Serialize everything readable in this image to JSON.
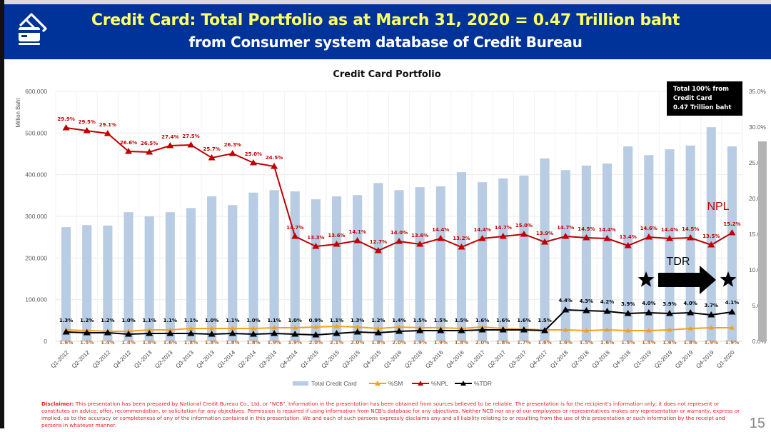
{
  "header": {
    "icon": "credit-card-icon",
    "title_line1": "Credit Card: Total Portfolio as at March 31, 2020 = 0.47 Trillion baht",
    "title_line2": "from Consumer system database of Credit Bureau",
    "bg_color": "#003399",
    "title_color": "#ffff66"
  },
  "callout": {
    "lines": [
      "Total 100% from",
      "Credit Card",
      "0.47 Trillion baht"
    ]
  },
  "annotations": {
    "npl_label": "NPL",
    "tdr_label": "TDR",
    "tdr_markers": [
      "star-icon",
      "arrow-right-icon",
      "star-icon"
    ]
  },
  "chart_data": {
    "type": "bar",
    "title": "Credit Card Portfolio",
    "ylabel": "Million Baht",
    "ylim": [
      0,
      600000
    ],
    "yticks": [
      "0",
      "100,000",
      "200,000",
      "300,000",
      "400,000",
      "500,000",
      "600,000"
    ],
    "y2lim": [
      0,
      35
    ],
    "y2ticks": [
      "0.0%",
      "5.0%",
      "10.0%",
      "15.0%",
      "20.0%",
      "25.0%",
      "30.0%",
      "35.0%"
    ],
    "grid": true,
    "legend_position": "bottom",
    "categories": [
      "Q1-2012",
      "Q2-2012",
      "Q3-2012",
      "Q4-2012",
      "Q1-2013",
      "Q2-2013",
      "Q3-2013",
      "Q4-2013",
      "Q1-2014",
      "Q2-2014",
      "Q3-2014",
      "Q4-2014",
      "Q1-2015",
      "Q2-2015",
      "Q3-2015",
      "Q4-2015",
      "Q1-2016",
      "Q2-2016",
      "Q3-2016",
      "Q4-2016",
      "Q1-2017",
      "Q2-2017",
      "Q3-2017",
      "Q4-2017",
      "Q1-2018",
      "Q2-2018",
      "Q3-2018",
      "Q4-2018",
      "Q1-2019",
      "Q2-2019",
      "Q3-2019",
      "Q4-2019",
      "Q1-2020"
    ],
    "series": [
      {
        "name": "Total Credit Card",
        "type": "bar",
        "axis": "primary",
        "color": "#b8cce4",
        "values": [
          274000,
          279000,
          278000,
          310000,
          300000,
          310000,
          320000,
          348000,
          327000,
          357000,
          363000,
          360000,
          341000,
          348000,
          351000,
          380000,
          363000,
          370000,
          372000,
          406000,
          382000,
          391000,
          398000,
          439000,
          411000,
          422000,
          427000,
          468000,
          447000,
          461000,
          470000,
          514000,
          468000
        ]
      },
      {
        "name": "%SM",
        "type": "line",
        "axis": "secondary",
        "color": "#f5a01a",
        "label_color": "#c0651a",
        "values": [
          1.6,
          1.5,
          1.4,
          1.4,
          1.6,
          1.6,
          1.8,
          1.8,
          1.8,
          1.8,
          1.9,
          1.9,
          2.0,
          2.1,
          2.0,
          1.8,
          2.0,
          1.9,
          1.9,
          1.8,
          2.0,
          1.8,
          1.7,
          1.6,
          1.6,
          1.5,
          1.6,
          1.5,
          1.5,
          1.6,
          1.8,
          1.9,
          1.9
        ],
        "labels": [
          "1.6%",
          "1.5%",
          "1.4%",
          "1.4%",
          "1.6%",
          "1.6%",
          "1.8%",
          "1.8%",
          "1.8%",
          "1.8%",
          "1.9%",
          "1.9%",
          "2.0%",
          "2.1%",
          "2.0%",
          "1.8%",
          "2.0%",
          "1.9%",
          "1.9%",
          "1.8%",
          "2.0%",
          "1.8%",
          "1.7%",
          "1.6%",
          "1.6%",
          "1.5%",
          "1.6%",
          "1.5%",
          "1.5%",
          "1.6%",
          "1.8%",
          "1.9%",
          "1.9%"
        ]
      },
      {
        "name": "%NPL",
        "type": "line",
        "axis": "secondary",
        "color": "#c00000",
        "label_color": "#c00000",
        "values": [
          29.9,
          29.5,
          29.1,
          26.6,
          26.5,
          27.4,
          27.5,
          25.7,
          26.3,
          25.0,
          24.5,
          14.7,
          13.3,
          13.6,
          14.1,
          12.7,
          14.0,
          13.6,
          14.4,
          13.2,
          14.4,
          14.7,
          15.0,
          13.9,
          14.7,
          14.5,
          14.4,
          13.4,
          14.6,
          14.4,
          14.5,
          13.5,
          15.2
        ],
        "labels": [
          "29.9%",
          "29.5%",
          "29.1%",
          "26.6%",
          "26.5%",
          "27.4%",
          "27.5%",
          "25.7%",
          "26.3%",
          "25.0%",
          "24.5%",
          "14.7%",
          "13.3%",
          "13.6%",
          "14.1%",
          "12.7%",
          "14.0%",
          "13.6%",
          "14.4%",
          "13.2%",
          "14.4%",
          "14.7%",
          "15.0%",
          "13.9%",
          "14.7%",
          "14.5%",
          "14.4%",
          "13.4%",
          "14.6%",
          "14.4%",
          "14.5%",
          "13.5%",
          "15.2%"
        ]
      },
      {
        "name": "%TDR",
        "type": "line",
        "axis": "secondary",
        "color": "#000000",
        "label_color": "#000000",
        "values": [
          1.3,
          1.2,
          1.2,
          1.0,
          1.1,
          1.1,
          1.1,
          1.0,
          1.1,
          1.0,
          1.1,
          1.0,
          0.9,
          1.1,
          1.3,
          1.2,
          1.4,
          1.5,
          1.5,
          1.5,
          1.6,
          1.6,
          1.6,
          1.5,
          4.4,
          4.3,
          4.2,
          3.9,
          4.0,
          3.9,
          4.0,
          3.7,
          4.1
        ],
        "labels": [
          "1.3%",
          "1.2%",
          "1.2%",
          "1.0%",
          "1.1%",
          "1.1%",
          "1.1%",
          "1.0%",
          "1.1%",
          "1.0%",
          "1.1%",
          "1.0%",
          "0.9%",
          "1.1%",
          "1.3%",
          "1.2%",
          "1.4%",
          "1.5%",
          "1.5%",
          "1.5%",
          "1.6%",
          "1.6%",
          "1.6%",
          "1.5%",
          "4.4%",
          "4.3%",
          "4.2%",
          "3.9%",
          "4.0%",
          "3.9%",
          "4.0%",
          "3.7%",
          "4.1%"
        ]
      }
    ]
  },
  "disclaimer": {
    "label": "Disclaimer:",
    "text": " This presentation has been prepared by National Credit Bureau Co., Ltd. or \"NCB\". Information in the presentation has been obtained from sources believed to be reliable. The presentation is for the recipient's information only; it does not represent or constitutes an advice, offer, recommendation, or solicitation for any objectives. Permission is required if using information from NCB's database for any objectives. Neither NCB nor any of our employees or representatives makes any representation or warranty, express or implied, as to the accuracy or completeness of any of the information contained in this presentation. We and each of such persons expressly disclaims any and all liability relating to or resulting from the use of this presentation or such information by the receipt and persons in whatever manner."
  },
  "page_number": "15"
}
